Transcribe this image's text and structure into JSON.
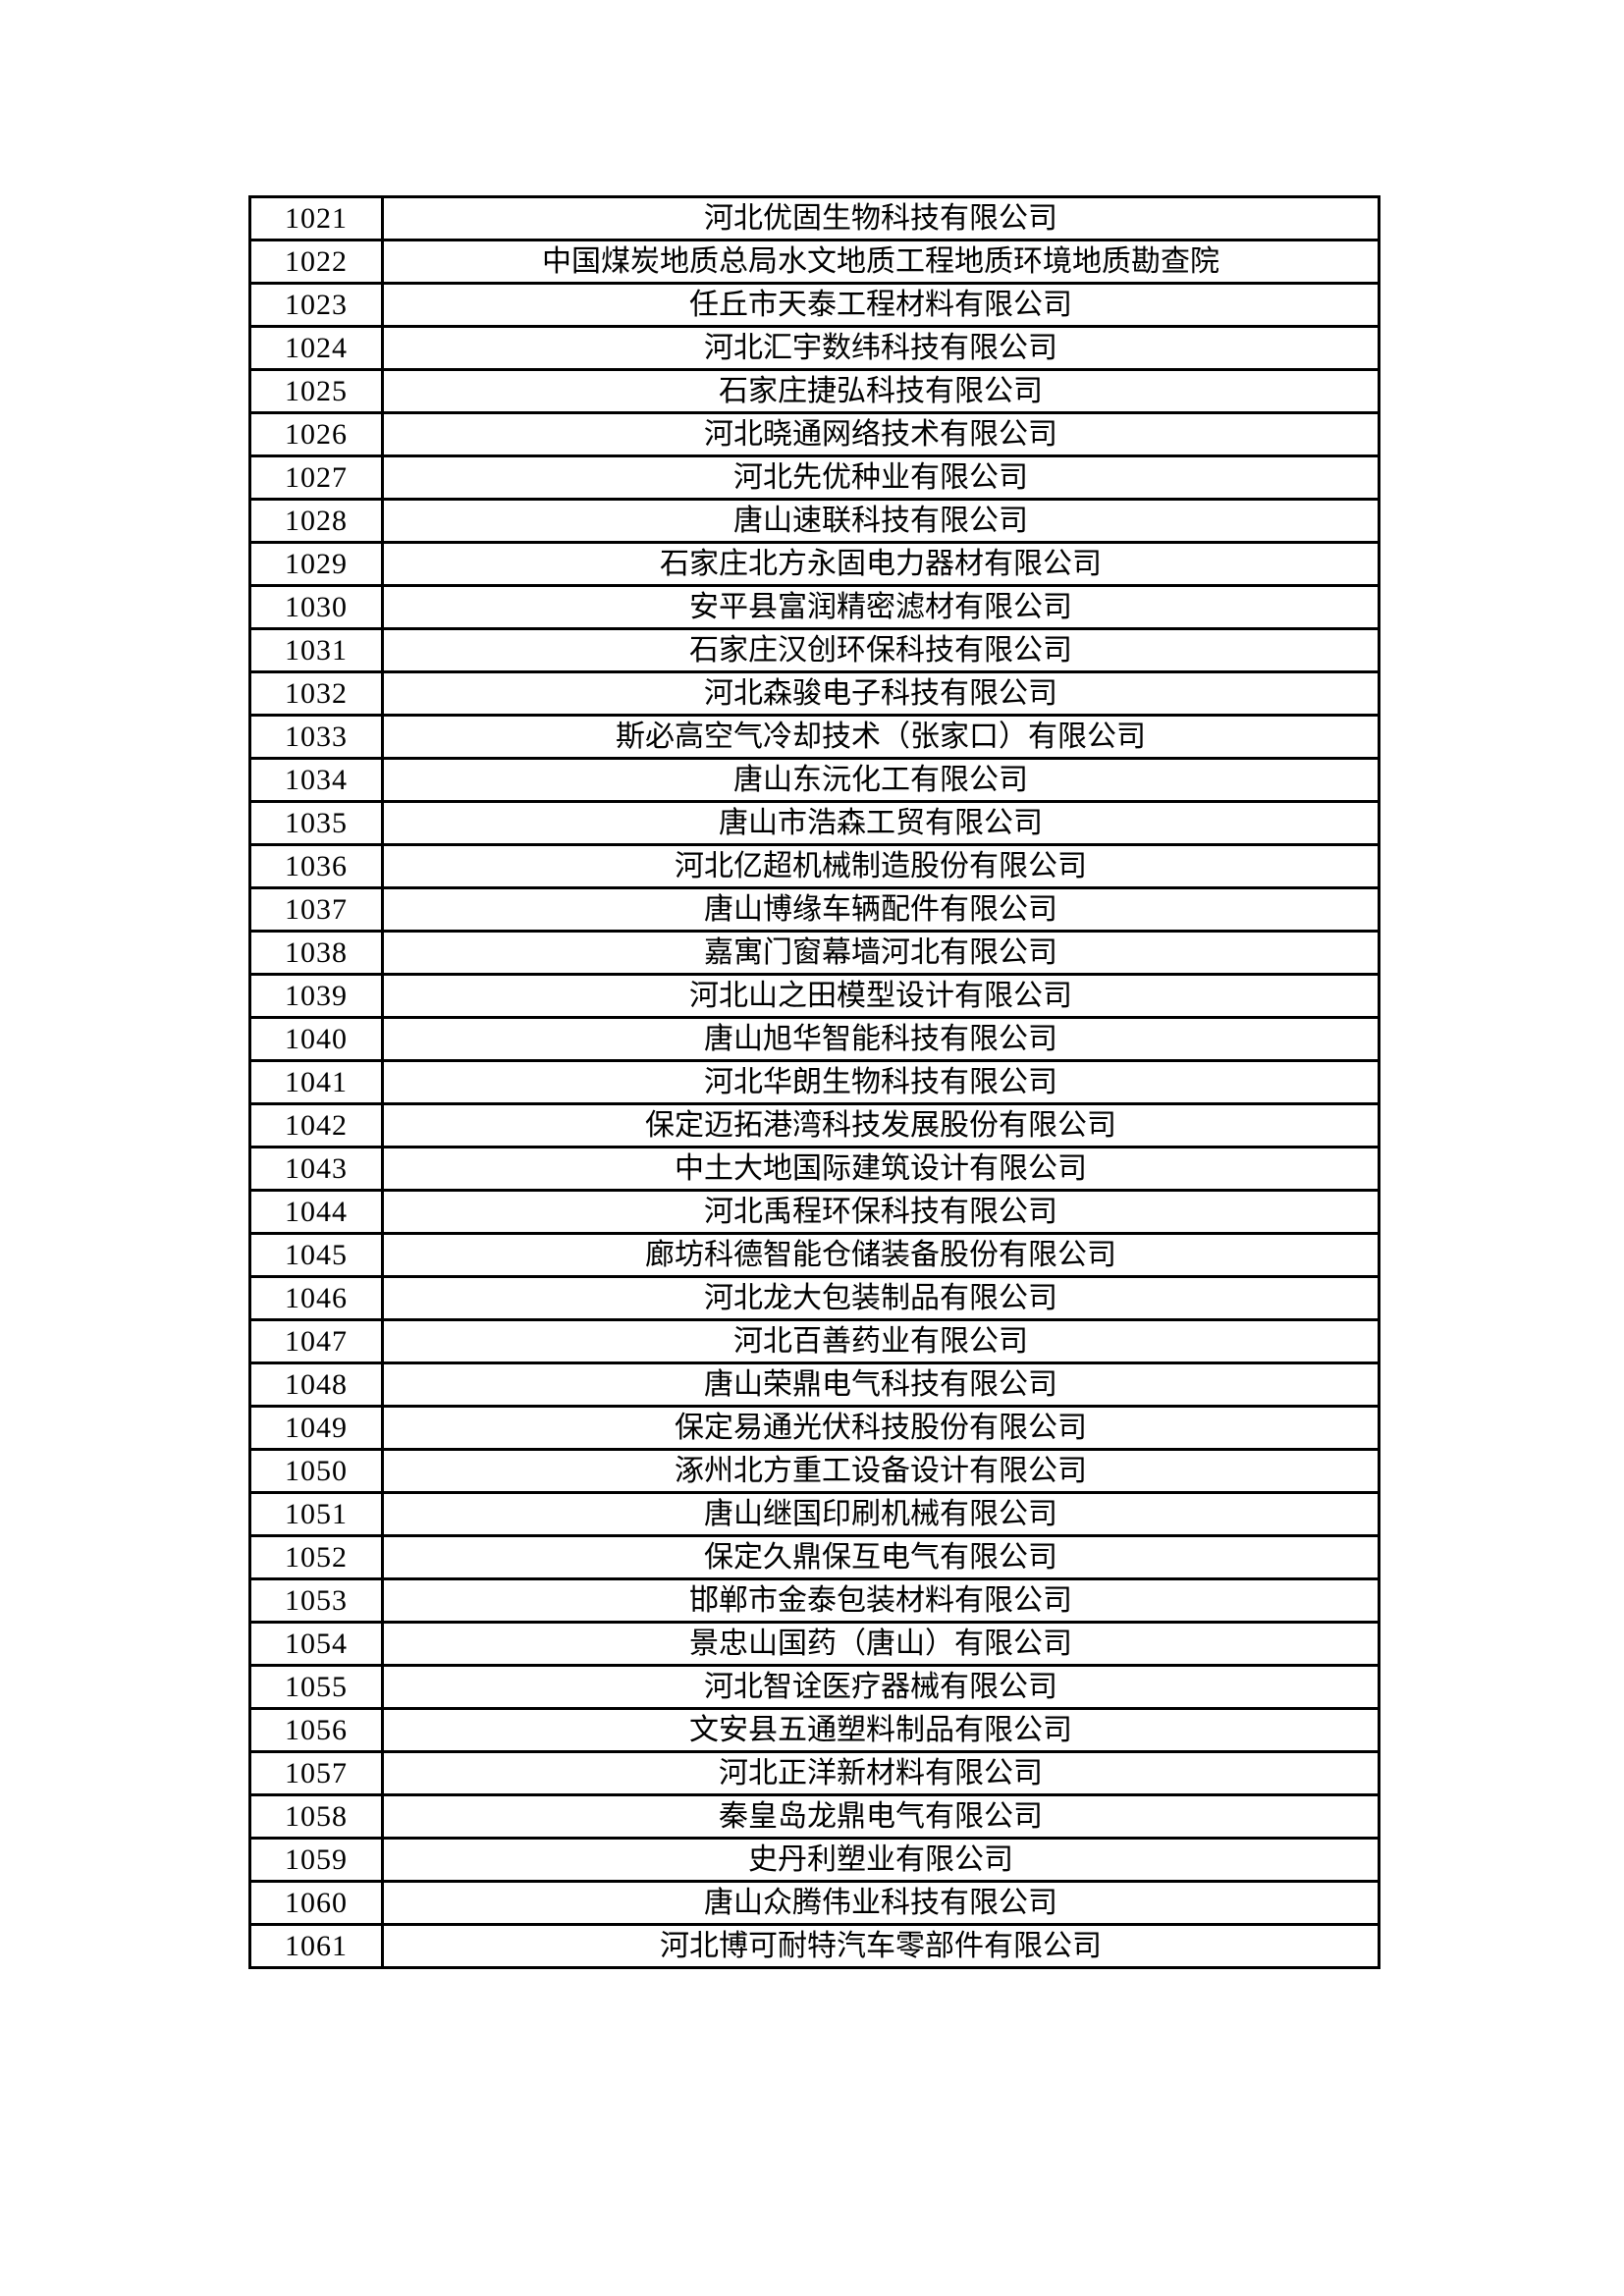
{
  "table": {
    "rows": [
      {
        "id": "1021",
        "name": "河北优固生物科技有限公司"
      },
      {
        "id": "1022",
        "name": "中国煤炭地质总局水文地质工程地质环境地质勘查院"
      },
      {
        "id": "1023",
        "name": "任丘市天泰工程材料有限公司"
      },
      {
        "id": "1024",
        "name": "河北汇宇数纬科技有限公司"
      },
      {
        "id": "1025",
        "name": "石家庄捷弘科技有限公司"
      },
      {
        "id": "1026",
        "name": "河北晓通网络技术有限公司"
      },
      {
        "id": "1027",
        "name": "河北先优种业有限公司"
      },
      {
        "id": "1028",
        "name": "唐山速联科技有限公司"
      },
      {
        "id": "1029",
        "name": "石家庄北方永固电力器材有限公司"
      },
      {
        "id": "1030",
        "name": "安平县富润精密滤材有限公司"
      },
      {
        "id": "1031",
        "name": "石家庄汉创环保科技有限公司"
      },
      {
        "id": "1032",
        "name": "河北森骏电子科技有限公司"
      },
      {
        "id": "1033",
        "name": "斯必高空气冷却技术（张家口）有限公司"
      },
      {
        "id": "1034",
        "name": "唐山东沅化工有限公司"
      },
      {
        "id": "1035",
        "name": "唐山市浩森工贸有限公司"
      },
      {
        "id": "1036",
        "name": "河北亿超机械制造股份有限公司"
      },
      {
        "id": "1037",
        "name": "唐山博缘车辆配件有限公司"
      },
      {
        "id": "1038",
        "name": "嘉寓门窗幕墙河北有限公司"
      },
      {
        "id": "1039",
        "name": "河北山之田模型设计有限公司"
      },
      {
        "id": "1040",
        "name": "唐山旭华智能科技有限公司"
      },
      {
        "id": "1041",
        "name": "河北华朗生物科技有限公司"
      },
      {
        "id": "1042",
        "name": "保定迈拓港湾科技发展股份有限公司"
      },
      {
        "id": "1043",
        "name": "中土大地国际建筑设计有限公司"
      },
      {
        "id": "1044",
        "name": "河北禹程环保科技有限公司"
      },
      {
        "id": "1045",
        "name": "廊坊科德智能仓储装备股份有限公司"
      },
      {
        "id": "1046",
        "name": "河北龙大包装制品有限公司"
      },
      {
        "id": "1047",
        "name": "河北百善药业有限公司"
      },
      {
        "id": "1048",
        "name": "唐山荣鼎电气科技有限公司"
      },
      {
        "id": "1049",
        "name": "保定易通光伏科技股份有限公司"
      },
      {
        "id": "1050",
        "name": "涿州北方重工设备设计有限公司"
      },
      {
        "id": "1051",
        "name": "唐山继国印刷机械有限公司"
      },
      {
        "id": "1052",
        "name": "保定久鼎保互电气有限公司"
      },
      {
        "id": "1053",
        "name": "邯郸市金泰包装材料有限公司"
      },
      {
        "id": "1054",
        "name": "景忠山国药（唐山）有限公司"
      },
      {
        "id": "1055",
        "name": "河北智诠医疗器械有限公司"
      },
      {
        "id": "1056",
        "name": "文安县五通塑料制品有限公司"
      },
      {
        "id": "1057",
        "name": "河北正洋新材料有限公司"
      },
      {
        "id": "1058",
        "name": "秦皇岛龙鼎电气有限公司"
      },
      {
        "id": "1059",
        "name": "史丹利塑业有限公司"
      },
      {
        "id": "1060",
        "name": "唐山众腾伟业科技有限公司"
      },
      {
        "id": "1061",
        "name": "河北博可耐特汽车零部件有限公司"
      }
    ]
  }
}
